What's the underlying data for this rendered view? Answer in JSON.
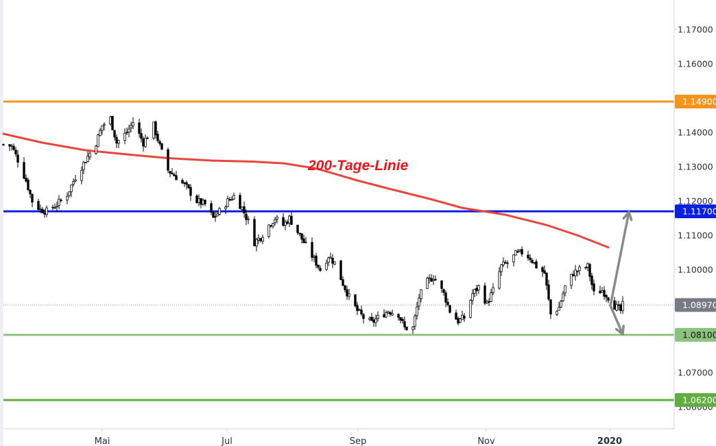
{
  "chart_data": {
    "type": "candlestick",
    "instrument_hint": "",
    "x_axis": {
      "tick_labels": [
        "Mai",
        "Jul",
        "Sep",
        "Nov",
        "2020"
      ],
      "bold_labels": [
        "2020"
      ]
    },
    "y_axis": {
      "range": [
        1.0555,
        1.178
      ],
      "tick_values": [
        1.17,
        1.16,
        1.14,
        1.13,
        1.12,
        1.11,
        1.1,
        1.07,
        1.06
      ],
      "tick_labels": [
        "1.17000",
        "1.16000",
        "1.14000",
        "1.13000",
        "1.12000",
        "1.11000",
        "1.10000",
        "1.07000",
        "1.06000"
      ]
    },
    "horizontal_levels": [
      {
        "value": 1.149,
        "label": "1.14900",
        "color": "#f7931a",
        "text_color": "#ffffff"
      },
      {
        "value": 1.117,
        "label": "1.11700",
        "color": "#0a1fe0",
        "text_color": "#ffffff"
      },
      {
        "value": 1.081,
        "label": "1.08100",
        "color": "#8cc47f",
        "text_color": "#111111"
      },
      {
        "value": 1.062,
        "label": "1.06200",
        "color": "#5fae3f",
        "text_color": "#ffffff"
      }
    ],
    "last_price": {
      "value": 1.0897,
      "label": "1.08970",
      "color": "#787b86"
    },
    "moving_average": {
      "label": "200-Tage-Linie",
      "color": "#e8453c",
      "points": [
        [
          "2019-03-01",
          1.1396
        ],
        [
          "2019-03-20",
          1.137
        ],
        [
          "2019-04-10",
          1.1348
        ],
        [
          "2019-04-30",
          1.1336
        ],
        [
          "2019-05-20",
          1.1325
        ],
        [
          "2019-06-10",
          1.1318
        ],
        [
          "2019-06-30",
          1.1315
        ],
        [
          "2019-07-15",
          1.131
        ],
        [
          "2019-07-31",
          1.1295
        ],
        [
          "2019-08-20",
          1.126
        ],
        [
          "2019-09-05",
          1.1235
        ],
        [
          "2019-09-25",
          1.1205
        ],
        [
          "2019-10-10",
          1.118
        ],
        [
          "2019-10-31",
          1.116
        ],
        [
          "2019-11-20",
          1.113
        ],
        [
          "2019-12-05",
          1.11
        ],
        [
          "2019-12-20",
          1.1065
        ]
      ]
    },
    "arrows": [
      {
        "from": [
          "2019-12-21",
          1.0895
        ],
        "to": [
          "2019-12-30",
          1.1168
        ],
        "color": "#8a8a8a"
      },
      {
        "from": [
          "2019-12-21",
          1.0895
        ],
        "to": [
          "2019-12-27",
          1.0812
        ],
        "color": "#8a8a8a"
      }
    ],
    "close_path": [
      [
        "2019-03-01",
        1.1365
      ],
      [
        "2019-03-05",
        1.136
      ],
      [
        "2019-03-08",
        1.132
      ],
      [
        "2019-03-12",
        1.126
      ],
      [
        "2019-03-15",
        1.12
      ],
      [
        "2019-03-19",
        1.1175
      ],
      [
        "2019-03-22",
        1.117
      ],
      [
        "2019-03-27",
        1.119
      ],
      [
        "2019-04-01",
        1.122
      ],
      [
        "2019-04-05",
        1.127
      ],
      [
        "2019-04-10",
        1.132
      ],
      [
        "2019-04-15",
        1.137
      ],
      [
        "2019-04-18",
        1.142
      ],
      [
        "2019-04-22",
        1.144
      ],
      [
        "2019-04-25",
        1.137
      ],
      [
        "2019-04-30",
        1.14
      ],
      [
        "2019-05-03",
        1.143
      ],
      [
        "2019-05-08",
        1.137
      ],
      [
        "2019-05-13",
        1.142
      ],
      [
        "2019-05-16",
        1.136
      ],
      [
        "2019-05-20",
        1.129
      ],
      [
        "2019-05-24",
        1.127
      ],
      [
        "2019-05-29",
        1.124
      ],
      [
        "2019-06-03",
        1.12
      ],
      [
        "2019-06-07",
        1.119
      ],
      [
        "2019-06-11",
        1.115
      ],
      [
        "2019-06-14",
        1.117
      ],
      [
        "2019-06-18",
        1.12
      ],
      [
        "2019-06-21",
        1.1215
      ],
      [
        "2019-06-25",
        1.118
      ],
      [
        "2019-06-28",
        1.114
      ],
      [
        "2019-07-01",
        1.108
      ],
      [
        "2019-07-04",
        1.1095
      ],
      [
        "2019-07-08",
        1.113
      ],
      [
        "2019-07-11",
        1.115
      ],
      [
        "2019-07-15",
        1.113
      ],
      [
        "2019-07-18",
        1.115
      ],
      [
        "2019-07-22",
        1.111
      ],
      [
        "2019-07-25",
        1.108
      ],
      [
        "2019-07-30",
        1.103
      ],
      [
        "2019-08-02",
        1.1
      ],
      [
        "2019-08-06",
        1.104
      ],
      [
        "2019-08-09",
        1.102
      ],
      [
        "2019-08-13",
        1.096
      ],
      [
        "2019-08-16",
        1.092
      ],
      [
        "2019-08-20",
        1.088
      ],
      [
        "2019-08-23",
        1.086
      ],
      [
        "2019-08-27",
        1.0845
      ],
      [
        "2019-08-30",
        1.086
      ],
      [
        "2019-09-04",
        1.088
      ],
      [
        "2019-09-09",
        1.087
      ],
      [
        "2019-09-12",
        1.083
      ],
      [
        "2019-09-16",
        1.083
      ],
      [
        "2019-09-19",
        1.092
      ],
      [
        "2019-09-23",
        1.0965
      ],
      [
        "2019-09-26",
        1.098
      ],
      [
        "2019-10-01",
        1.093
      ],
      [
        "2019-10-04",
        1.088
      ],
      [
        "2019-10-08",
        1.085
      ],
      [
        "2019-10-11",
        1.086
      ],
      [
        "2019-10-15",
        1.093
      ],
      [
        "2019-10-18",
        1.095
      ],
      [
        "2019-10-22",
        1.09
      ],
      [
        "2019-10-25",
        1.094
      ],
      [
        "2019-10-29",
        1.101
      ],
      [
        "2019-11-01",
        1.102
      ],
      [
        "2019-11-05",
        1.1045
      ],
      [
        "2019-11-08",
        1.105
      ],
      [
        "2019-11-12",
        1.1035
      ],
      [
        "2019-11-15",
        1.101
      ],
      [
        "2019-11-19",
        1.099
      ],
      [
        "2019-11-22",
        1.087
      ],
      [
        "2019-11-26",
        1.089
      ],
      [
        "2019-11-29",
        1.095
      ],
      [
        "2019-12-03",
        1.099
      ],
      [
        "2019-12-06",
        1.1
      ],
      [
        "2019-12-10",
        1.101
      ],
      [
        "2019-12-13",
        1.093
      ],
      [
        "2019-12-17",
        1.094
      ],
      [
        "2019-12-20",
        1.092
      ],
      [
        "2019-12-23",
        1.0895
      ],
      [
        "2019-12-26",
        1.088
      ],
      [
        "2019-12-27",
        1.0897
      ]
    ]
  }
}
